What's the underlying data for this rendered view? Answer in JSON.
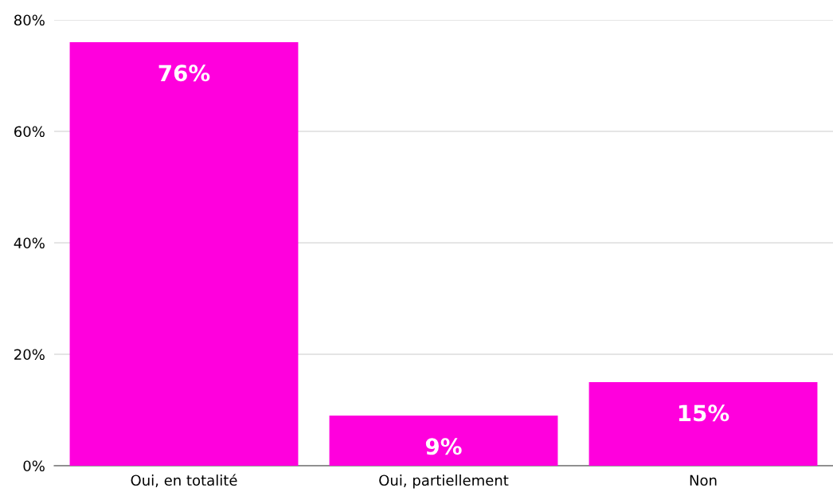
{
  "chart_data": {
    "type": "bar",
    "categories": [
      "Oui, en totalité",
      "Oui, partiellement",
      "Non"
    ],
    "values": [
      76,
      9,
      15
    ],
    "value_labels": [
      "76%",
      "9%",
      "15%"
    ],
    "color": "#ff00dd",
    "ylim": [
      0,
      80
    ],
    "yticks": [
      {
        "value": 0,
        "label": "0%"
      },
      {
        "value": 20,
        "label": "20%"
      },
      {
        "value": 40,
        "label": "40%"
      },
      {
        "value": 60,
        "label": "60%"
      },
      {
        "value": 80,
        "label": "80%"
      }
    ],
    "grid": "y"
  }
}
